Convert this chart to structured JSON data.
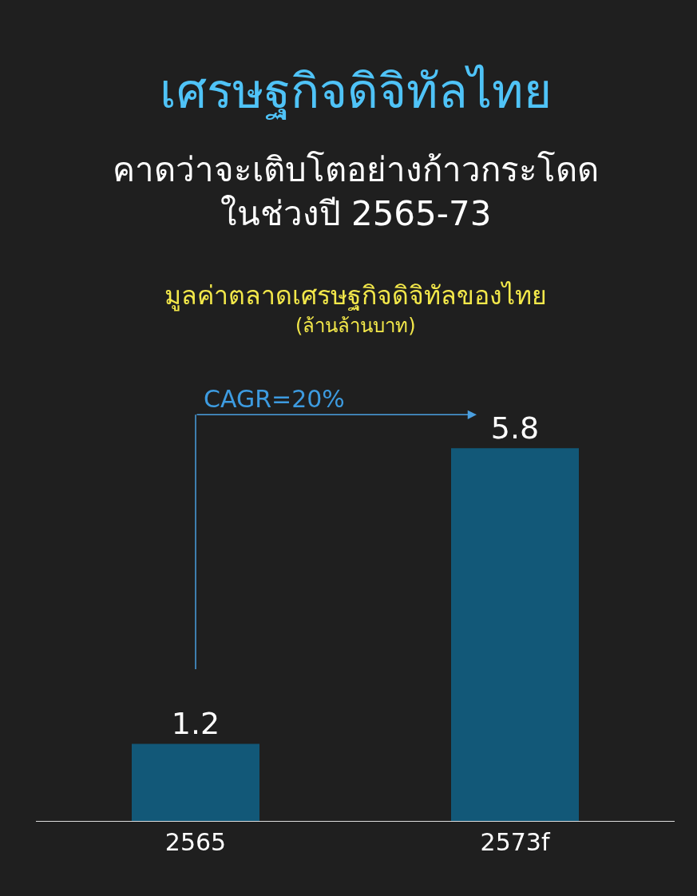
{
  "chart_data": {
    "type": "bar",
    "title": "เศรษฐกิจดิจิทัลไทย",
    "subtitle": "คาดว่าจะเติบโตอย่างก้าวกระโดด\nในช่วงปี 2565-73",
    "ylabel": "มูลค่าตลาดเศรษฐกิจดิจิทัลของไทย\n(ล้านล้านบาท)",
    "categories": [
      "2565",
      "2573f"
    ],
    "values": [
      1.2,
      5.8
    ],
    "color": "#125878",
    "data_labels": true,
    "annotations": [
      "CAGR=20%"
    ]
  }
}
